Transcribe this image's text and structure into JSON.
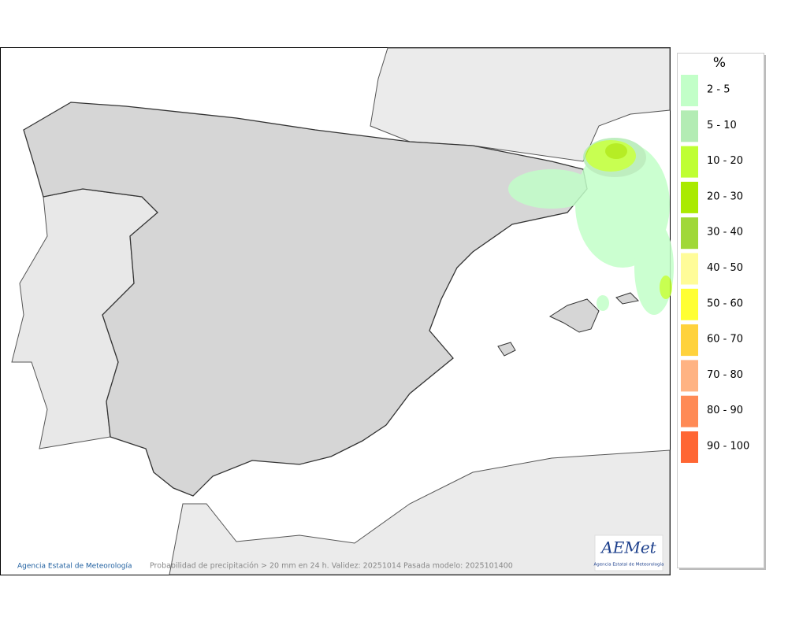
{
  "legend": {
    "title": "%",
    "items": [
      {
        "label": "2 - 5",
        "color": "#c2ffc8"
      },
      {
        "label": "5 - 10",
        "color": "#b3ecb4"
      },
      {
        "label": "10 - 20",
        "color": "#bfff33"
      },
      {
        "label": "20 - 30",
        "color": "#aaea00"
      },
      {
        "label": "30 - 40",
        "color": "#a0d838"
      },
      {
        "label": "40 - 50",
        "color": "#fffc99"
      },
      {
        "label": "50 - 60",
        "color": "#ffff33"
      },
      {
        "label": "60 - 70",
        "color": "#ffd23c"
      },
      {
        "label": "70 - 80",
        "color": "#ffb383"
      },
      {
        "label": "80 - 90",
        "color": "#ff8a55"
      },
      {
        "label": "90 - 100",
        "color": "#ff6633"
      }
    ]
  },
  "credit": "Agencia Estatal de Meteorología",
  "caption": "Probabilidad de precipitación > 20 mm en 24 h. Validez: 20251014 Pasada modelo: 2025101400",
  "logo": {
    "name": "AEMet",
    "subtitle": "Agencia Estatal de Meteorología"
  }
}
